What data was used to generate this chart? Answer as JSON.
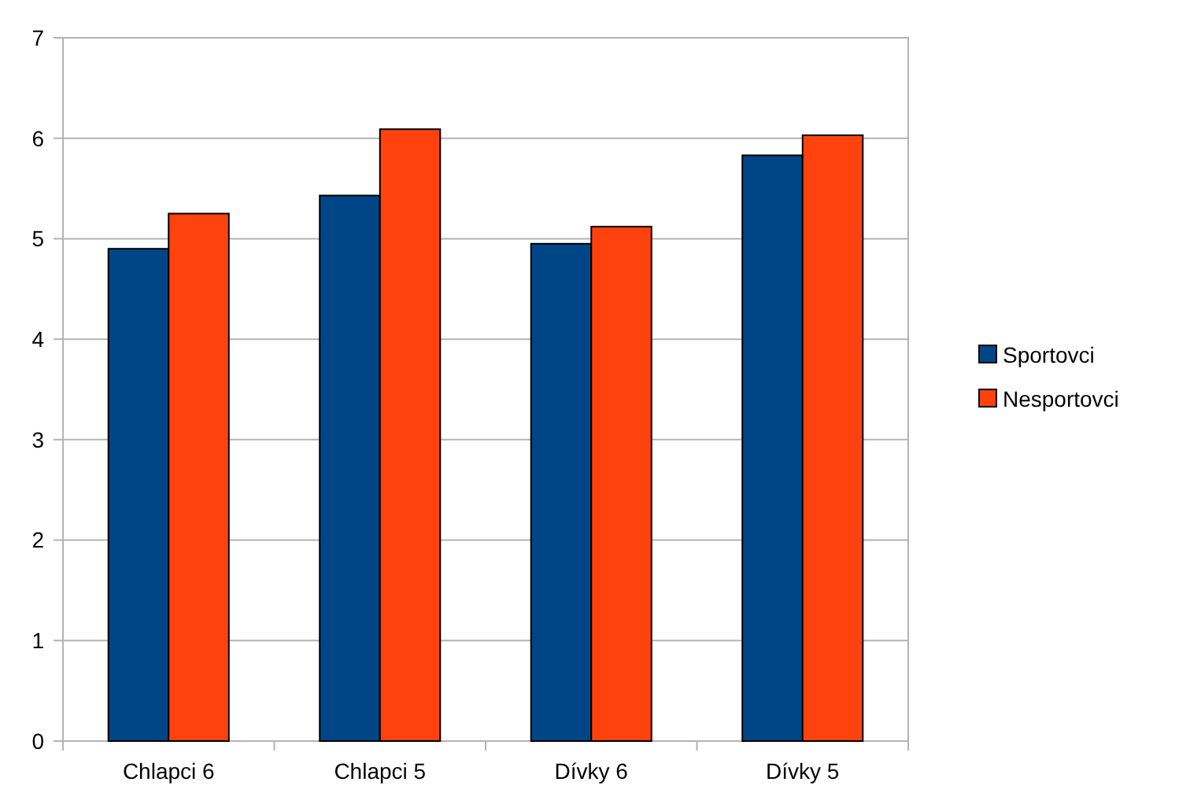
{
  "chart_data": {
    "type": "bar",
    "categories": [
      "Chlapci 6",
      "Chlapci 5",
      "Dívky 6",
      "Dívky 5"
    ],
    "series": [
      {
        "name": "Sportovci",
        "color": "#004586",
        "values": [
          4.9,
          5.43,
          4.95,
          5.83
        ]
      },
      {
        "name": "Nesportovci",
        "color": "#ff420e",
        "values": [
          5.25,
          6.09,
          5.12,
          6.03
        ]
      }
    ],
    "ylim": [
      0,
      7
    ],
    "yticks": [
      0,
      1,
      2,
      3,
      4,
      5,
      6,
      7
    ],
    "grid": "y",
    "legend": "right"
  }
}
